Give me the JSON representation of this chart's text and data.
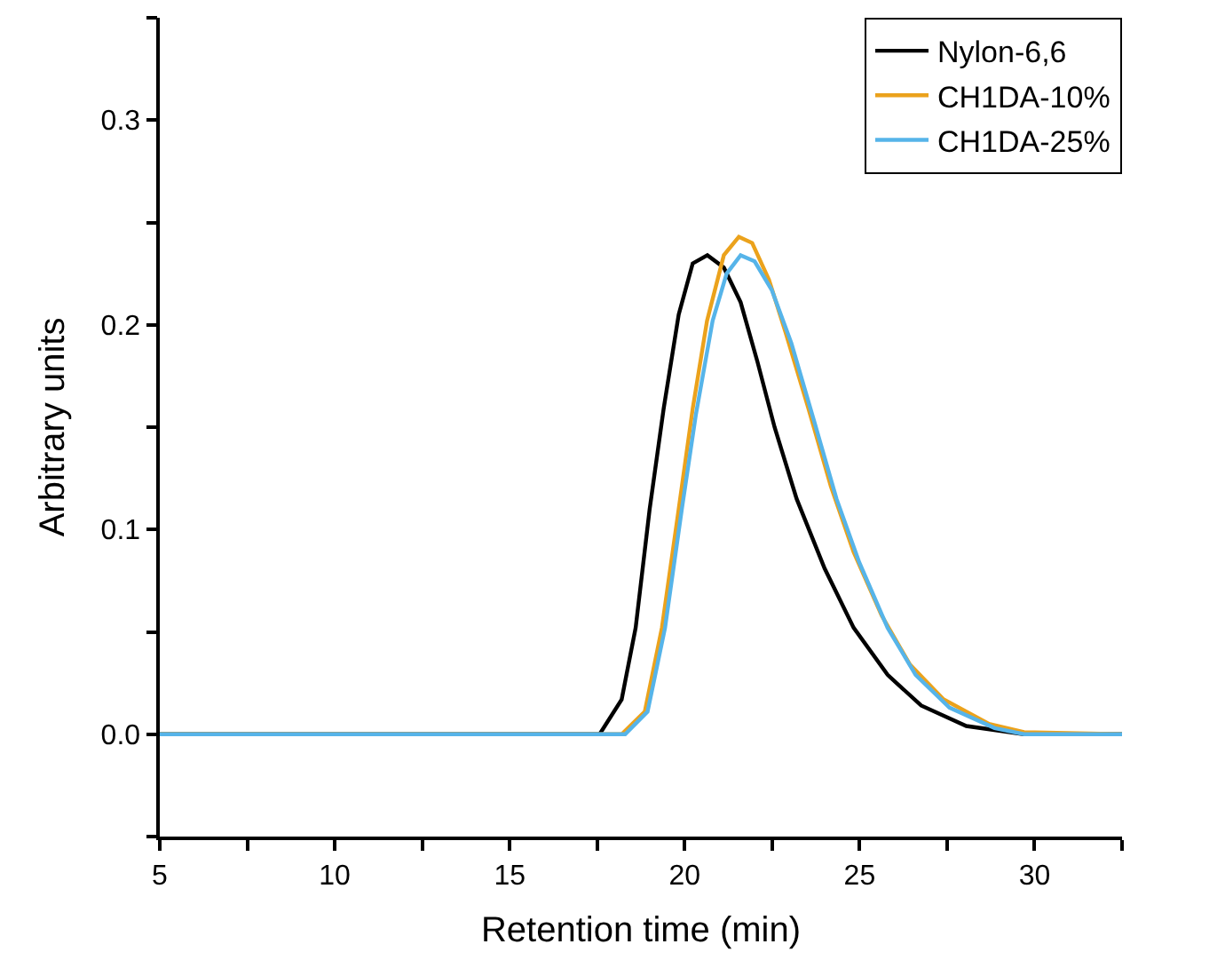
{
  "chart_data": {
    "type": "line",
    "xlabel": "Retention time (min)",
    "ylabel": "Arbitrary units",
    "xlim": [
      5,
      32.5
    ],
    "ylim": [
      -0.05,
      0.35
    ],
    "xticks": [
      5,
      {
        "value": 7.5,
        "label": null
      },
      10,
      {
        "value": 12.5,
        "label": null
      },
      15,
      {
        "value": 17.5,
        "label": null
      },
      20,
      {
        "value": 22.5,
        "label": null
      },
      25,
      {
        "value": 27.5,
        "label": null
      },
      30,
      {
        "value": 32.5,
        "label": null
      }
    ],
    "yticks": [
      {
        "value": -0.05,
        "label": null
      },
      {
        "value": 0,
        "label": "0.0"
      },
      {
        "value": 0.05,
        "label": null
      },
      {
        "value": 0.1,
        "label": "0.1"
      },
      {
        "value": 0.15,
        "label": null
      },
      {
        "value": 0.2,
        "label": "0.2"
      },
      {
        "value": 0.25,
        "label": null
      },
      {
        "value": 0.3,
        "label": "0.3"
      },
      {
        "value": 0.35,
        "label": null
      }
    ],
    "legend": "top right",
    "marker": "none",
    "line_style": "solid",
    "series": [
      {
        "name": "Nylon-6,6",
        "color": "#000000",
        "x": [
          5,
          17.57,
          18.2,
          18.6,
          19.0,
          19.4,
          19.83,
          20.23,
          20.65,
          21.12,
          21.6,
          22.08,
          22.57,
          23.2,
          24.0,
          24.83,
          25.8,
          26.76,
          28.05,
          29.7,
          32.5
        ],
        "values": [
          0,
          0,
          0.017,
          0.052,
          0.11,
          0.159,
          0.205,
          0.23,
          0.234,
          0.228,
          0.211,
          0.182,
          0.15,
          0.115,
          0.081,
          0.052,
          0.029,
          0.014,
          0.004,
          0,
          0
        ]
      },
      {
        "name": "CH1DA-10%",
        "color": "#eba21c",
        "x": [
          5,
          18.2,
          18.86,
          19.35,
          19.83,
          20.23,
          20.64,
          21.12,
          21.55,
          21.93,
          22.41,
          22.89,
          23.54,
          24.18,
          24.83,
          25.63,
          26.44,
          27.4,
          28.7,
          29.7,
          32.5
        ],
        "values": [
          0,
          0,
          0.011,
          0.052,
          0.11,
          0.159,
          0.202,
          0.234,
          0.243,
          0.24,
          0.222,
          0.196,
          0.159,
          0.121,
          0.089,
          0.058,
          0.034,
          0.017,
          0.005,
          0.001,
          0
        ]
      },
      {
        "name": "CH1DA-25%",
        "color": "#56b4e9",
        "x": [
          5,
          18.3,
          18.94,
          19.44,
          19.92,
          20.32,
          20.8,
          21.2,
          21.6,
          22.0,
          22.49,
          23.05,
          23.7,
          24.34,
          24.99,
          25.8,
          26.6,
          27.57,
          28.86,
          29.7,
          32.5
        ],
        "values": [
          0,
          0,
          0.011,
          0.052,
          0.11,
          0.156,
          0.202,
          0.225,
          0.234,
          0.231,
          0.217,
          0.191,
          0.153,
          0.115,
          0.084,
          0.052,
          0.029,
          0.013,
          0.003,
          0,
          0
        ]
      }
    ]
  }
}
